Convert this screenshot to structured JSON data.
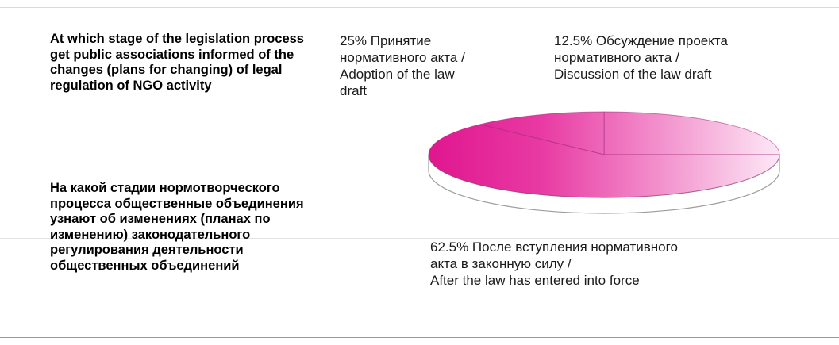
{
  "question": {
    "en": "At which stage of the legislation process get public associations informed of the changes (plans for changing) of legal regulation of NGO activity",
    "ru": "На какой стадии нормотворческого процесса общественные объединения узнают об изменениях (планах по изменению) законодательного регулирования деятельности общественных объединений"
  },
  "chart_data": {
    "type": "pie",
    "title": "",
    "slices": [
      {
        "value": 25,
        "label": "25% Принятие нормативного акта / Adoption of the law draft"
      },
      {
        "value": 12.5,
        "label": "12.5% Обсуждение проекта нормативного акта / Discussion of the law draft"
      },
      {
        "value": 62.5,
        "label": "62.5% После вступления нормативного акта в законную силу / After the law has entered into force"
      }
    ],
    "colors": {
      "dark": "#e0168f",
      "light": "#fde8f6",
      "edge": "#9c9c9c"
    }
  },
  "labels_display": [
    "25% Принятие\nнормативного акта /\nAdoption of the law\ndraft",
    "12.5% Обсуждение проекта\nнормативного акта /\nDiscussion of the law draft",
    "62.5% После вступления нормативного\nакта в законную силу /\nAfter the law has entered into force"
  ]
}
